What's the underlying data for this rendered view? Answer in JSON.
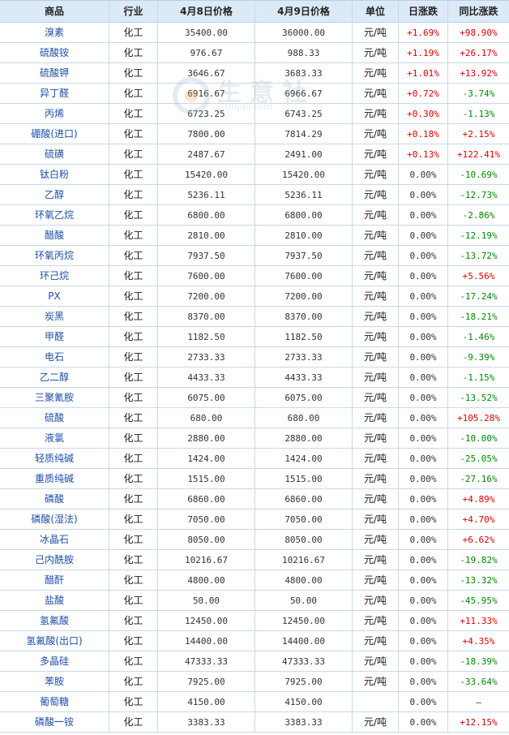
{
  "headers": [
    "商品",
    "行业",
    "4月8日价格",
    "4月9日价格",
    "单位",
    "日涨跌",
    "同比涨跌"
  ],
  "watermark": {
    "text": "生意社",
    "url": "100ppi.com"
  },
  "colors": {
    "header_bg": "#dce9f7",
    "up": "#e00000",
    "down": "#008a00",
    "link": "#1f4fa8"
  },
  "rows": [
    {
      "name": "溴素",
      "industry": "化工",
      "price_apr8": "35400.00",
      "price_apr9": "36000.00",
      "unit": "元/吨",
      "daily": "+1.69%",
      "yoy": "+98.90%",
      "daily_dir": "up",
      "yoy_dir": "up"
    },
    {
      "name": "硫酸铵",
      "industry": "化工",
      "price_apr8": "976.67",
      "price_apr9": "988.33",
      "unit": "元/吨",
      "daily": "+1.19%",
      "yoy": "+26.17%",
      "daily_dir": "up",
      "yoy_dir": "up"
    },
    {
      "name": "硫酸钾",
      "industry": "化工",
      "price_apr8": "3646.67",
      "price_apr9": "3683.33",
      "unit": "元/吨",
      "daily": "+1.01%",
      "yoy": "+13.92%",
      "daily_dir": "up",
      "yoy_dir": "up"
    },
    {
      "name": "异丁醛",
      "industry": "化工",
      "price_apr8": "6916.67",
      "price_apr9": "6966.67",
      "unit": "元/吨",
      "daily": "+0.72%",
      "yoy": "-3.74%",
      "daily_dir": "up",
      "yoy_dir": "down"
    },
    {
      "name": "丙烯",
      "industry": "化工",
      "price_apr8": "6723.25",
      "price_apr9": "6743.25",
      "unit": "元/吨",
      "daily": "+0.30%",
      "yoy": "-1.13%",
      "daily_dir": "up",
      "yoy_dir": "down"
    },
    {
      "name": "硼酸(进口)",
      "industry": "化工",
      "price_apr8": "7800.00",
      "price_apr9": "7814.29",
      "unit": "元/吨",
      "daily": "+0.18%",
      "yoy": "+2.15%",
      "daily_dir": "up",
      "yoy_dir": "up"
    },
    {
      "name": "硫磺",
      "industry": "化工",
      "price_apr8": "2487.67",
      "price_apr9": "2491.00",
      "unit": "元/吨",
      "daily": "+0.13%",
      "yoy": "+122.41%",
      "daily_dir": "up",
      "yoy_dir": "up"
    },
    {
      "name": "钛白粉",
      "industry": "化工",
      "price_apr8": "15420.00",
      "price_apr9": "15420.00",
      "unit": "元/吨",
      "daily": "0.00%",
      "yoy": "-10.69%",
      "daily_dir": "zero",
      "yoy_dir": "down"
    },
    {
      "name": "乙醇",
      "industry": "化工",
      "price_apr8": "5236.11",
      "price_apr9": "5236.11",
      "unit": "元/吨",
      "daily": "0.00%",
      "yoy": "-12.73%",
      "daily_dir": "zero",
      "yoy_dir": "down"
    },
    {
      "name": "环氧乙烷",
      "industry": "化工",
      "price_apr8": "6800.00",
      "price_apr9": "6800.00",
      "unit": "元/吨",
      "daily": "0.00%",
      "yoy": "-2.86%",
      "daily_dir": "zero",
      "yoy_dir": "down"
    },
    {
      "name": "醋酸",
      "industry": "化工",
      "price_apr8": "2810.00",
      "price_apr9": "2810.00",
      "unit": "元/吨",
      "daily": "0.00%",
      "yoy": "-12.19%",
      "daily_dir": "zero",
      "yoy_dir": "down"
    },
    {
      "name": "环氧丙烷",
      "industry": "化工",
      "price_apr8": "7937.50",
      "price_apr9": "7937.50",
      "unit": "元/吨",
      "daily": "0.00%",
      "yoy": "-13.72%",
      "daily_dir": "zero",
      "yoy_dir": "down"
    },
    {
      "name": "环己烷",
      "industry": "化工",
      "price_apr8": "7600.00",
      "price_apr9": "7600.00",
      "unit": "元/吨",
      "daily": "0.00%",
      "yoy": "+5.56%",
      "daily_dir": "zero",
      "yoy_dir": "up"
    },
    {
      "name": "PX",
      "industry": "化工",
      "price_apr8": "7200.00",
      "price_apr9": "7200.00",
      "unit": "元/吨",
      "daily": "0.00%",
      "yoy": "-17.24%",
      "daily_dir": "zero",
      "yoy_dir": "down"
    },
    {
      "name": "炭黑",
      "industry": "化工",
      "price_apr8": "8370.00",
      "price_apr9": "8370.00",
      "unit": "元/吨",
      "daily": "0.00%",
      "yoy": "-18.21%",
      "daily_dir": "zero",
      "yoy_dir": "down"
    },
    {
      "name": "甲醛",
      "industry": "化工",
      "price_apr8": "1182.50",
      "price_apr9": "1182.50",
      "unit": "元/吨",
      "daily": "0.00%",
      "yoy": "-1.46%",
      "daily_dir": "zero",
      "yoy_dir": "down"
    },
    {
      "name": "电石",
      "industry": "化工",
      "price_apr8": "2733.33",
      "price_apr9": "2733.33",
      "unit": "元/吨",
      "daily": "0.00%",
      "yoy": "-9.39%",
      "daily_dir": "zero",
      "yoy_dir": "down"
    },
    {
      "name": "乙二醇",
      "industry": "化工",
      "price_apr8": "4433.33",
      "price_apr9": "4433.33",
      "unit": "元/吨",
      "daily": "0.00%",
      "yoy": "-1.15%",
      "daily_dir": "zero",
      "yoy_dir": "down"
    },
    {
      "name": "三聚氰胺",
      "industry": "化工",
      "price_apr8": "6075.00",
      "price_apr9": "6075.00",
      "unit": "元/吨",
      "daily": "0.00%",
      "yoy": "-13.52%",
      "daily_dir": "zero",
      "yoy_dir": "down"
    },
    {
      "name": "硫酸",
      "industry": "化工",
      "price_apr8": "680.00",
      "price_apr9": "680.00",
      "unit": "元/吨",
      "daily": "0.00%",
      "yoy": "+105.28%",
      "daily_dir": "zero",
      "yoy_dir": "up"
    },
    {
      "name": "液氯",
      "industry": "化工",
      "price_apr8": "2880.00",
      "price_apr9": "2880.00",
      "unit": "元/吨",
      "daily": "0.00%",
      "yoy": "-10.00%",
      "daily_dir": "zero",
      "yoy_dir": "down"
    },
    {
      "name": "轻质纯碱",
      "industry": "化工",
      "price_apr8": "1424.00",
      "price_apr9": "1424.00",
      "unit": "元/吨",
      "daily": "0.00%",
      "yoy": "-25.05%",
      "daily_dir": "zero",
      "yoy_dir": "down"
    },
    {
      "name": "重质纯碱",
      "industry": "化工",
      "price_apr8": "1515.00",
      "price_apr9": "1515.00",
      "unit": "元/吨",
      "daily": "0.00%",
      "yoy": "-27.16%",
      "daily_dir": "zero",
      "yoy_dir": "down"
    },
    {
      "name": "磷酸",
      "industry": "化工",
      "price_apr8": "6860.00",
      "price_apr9": "6860.00",
      "unit": "元/吨",
      "daily": "0.00%",
      "yoy": "+4.89%",
      "daily_dir": "zero",
      "yoy_dir": "up"
    },
    {
      "name": "磷酸(湿法)",
      "industry": "化工",
      "price_apr8": "7050.00",
      "price_apr9": "7050.00",
      "unit": "元/吨",
      "daily": "0.00%",
      "yoy": "+4.70%",
      "daily_dir": "zero",
      "yoy_dir": "up"
    },
    {
      "name": "冰晶石",
      "industry": "化工",
      "price_apr8": "8050.00",
      "price_apr9": "8050.00",
      "unit": "元/吨",
      "daily": "0.00%",
      "yoy": "+6.62%",
      "daily_dir": "zero",
      "yoy_dir": "up"
    },
    {
      "name": "己内酰胺",
      "industry": "化工",
      "price_apr8": "10216.67",
      "price_apr9": "10216.67",
      "unit": "元/吨",
      "daily": "0.00%",
      "yoy": "-19.82%",
      "daily_dir": "zero",
      "yoy_dir": "down"
    },
    {
      "name": "醋酐",
      "industry": "化工",
      "price_apr8": "4800.00",
      "price_apr9": "4800.00",
      "unit": "元/吨",
      "daily": "0.00%",
      "yoy": "-13.32%",
      "daily_dir": "zero",
      "yoy_dir": "down"
    },
    {
      "name": "盐酸",
      "industry": "化工",
      "price_apr8": "50.00",
      "price_apr9": "50.00",
      "unit": "元/吨",
      "daily": "0.00%",
      "yoy": "-45.95%",
      "daily_dir": "zero",
      "yoy_dir": "down"
    },
    {
      "name": "氢氟酸",
      "industry": "化工",
      "price_apr8": "12450.00",
      "price_apr9": "12450.00",
      "unit": "元/吨",
      "daily": "0.00%",
      "yoy": "+11.33%",
      "daily_dir": "zero",
      "yoy_dir": "up"
    },
    {
      "name": "氢氟酸(出口)",
      "industry": "化工",
      "price_apr8": "14400.00",
      "price_apr9": "14400.00",
      "unit": "元/吨",
      "daily": "0.00%",
      "yoy": "+4.35%",
      "daily_dir": "zero",
      "yoy_dir": "up"
    },
    {
      "name": "多晶硅",
      "industry": "化工",
      "price_apr8": "47333.33",
      "price_apr9": "47333.33",
      "unit": "元/吨",
      "daily": "0.00%",
      "yoy": "-18.39%",
      "daily_dir": "zero",
      "yoy_dir": "down"
    },
    {
      "name": "苯胺",
      "industry": "化工",
      "price_apr8": "7925.00",
      "price_apr9": "7925.00",
      "unit": "元/吨",
      "daily": "0.00%",
      "yoy": "-33.64%",
      "daily_dir": "zero",
      "yoy_dir": "down"
    },
    {
      "name": "葡萄糖",
      "industry": "化工",
      "price_apr8": "4150.00",
      "price_apr9": "4150.00",
      "unit": "",
      "daily": "0.00%",
      "yoy": "—",
      "daily_dir": "zero",
      "yoy_dir": "zero"
    },
    {
      "name": "磷酸一铵",
      "industry": "化工",
      "price_apr8": "3383.33",
      "price_apr9": "3383.33",
      "unit": "元/吨",
      "daily": "0.00%",
      "yoy": "+12.15%",
      "daily_dir": "zero",
      "yoy_dir": "up"
    }
  ]
}
